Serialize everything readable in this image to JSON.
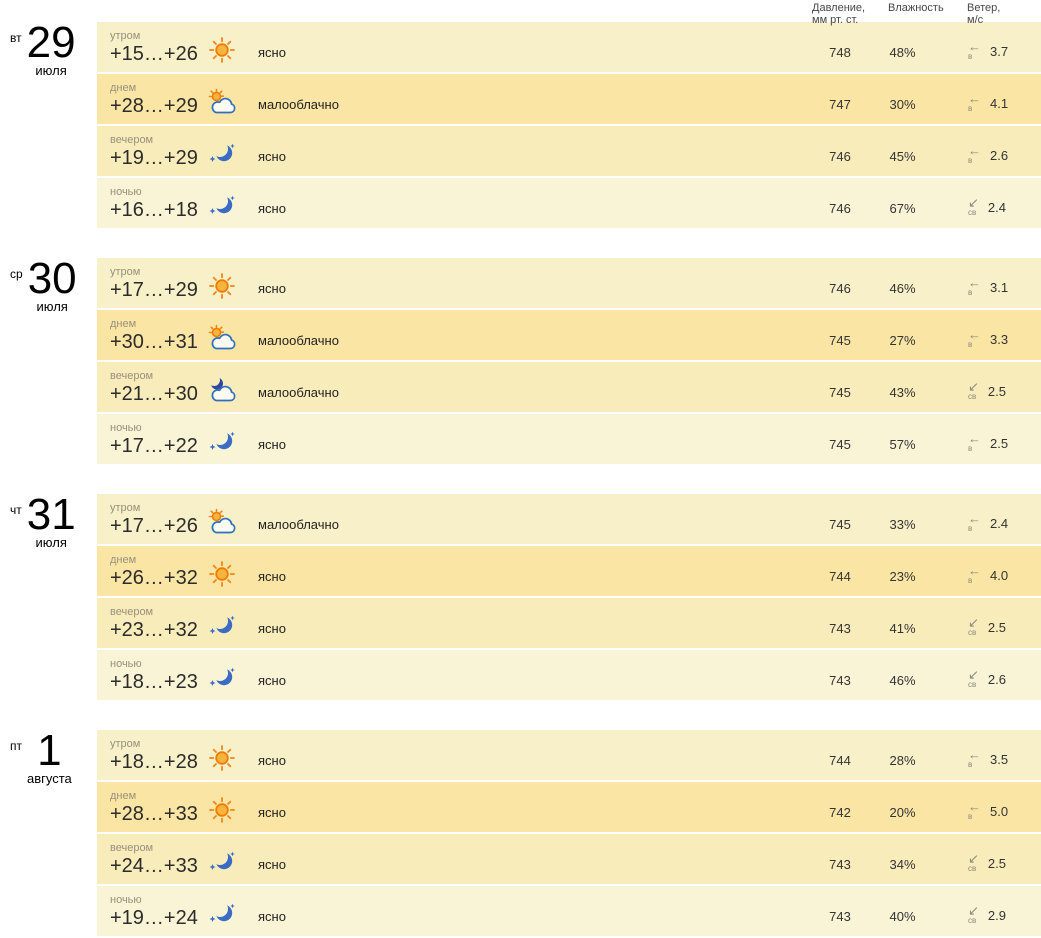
{
  "columns": {
    "pressure_label": "Давление,\nмм рт. ст.",
    "humidity_label": "Влажность",
    "wind_label": "Ветер,\nм/с"
  },
  "colors": {
    "row_morning": "#f7f0c8",
    "row_day": "#fbe5a4",
    "row_evening": "#f9ecbb",
    "row_night": "#f9f4d6",
    "sun_orange": "#f08518",
    "cloud_blue": "#2e6fbf",
    "moon_blue": "#3a6cc4",
    "dark_moon_blue": "#2b4a9e",
    "muted_text": "#97917d"
  },
  "days": [
    {
      "dow": "вт",
      "date": "29",
      "month": "июля",
      "rows": [
        {
          "part": "утром",
          "temp": "+15…+26",
          "icon": "sun",
          "condition": "ясно",
          "pressure": "748",
          "humidity": "48%",
          "wind_arrow": "←",
          "wind_dir": "в",
          "wind_speed": "3.7"
        },
        {
          "part": "днем",
          "temp": "+28…+29",
          "icon": "sun-cloud",
          "condition": "малооблачно",
          "pressure": "747",
          "humidity": "30%",
          "wind_arrow": "←",
          "wind_dir": "в",
          "wind_speed": "4.1"
        },
        {
          "part": "вечером",
          "temp": "+19…+29",
          "icon": "moon",
          "condition": "ясно",
          "pressure": "746",
          "humidity": "45%",
          "wind_arrow": "←",
          "wind_dir": "в",
          "wind_speed": "2.6"
        },
        {
          "part": "ночью",
          "temp": "+16…+18",
          "icon": "moon",
          "condition": "ясно",
          "pressure": "746",
          "humidity": "67%",
          "wind_arrow": "↙",
          "wind_dir": "св",
          "wind_speed": "2.4"
        }
      ]
    },
    {
      "dow": "ср",
      "date": "30",
      "month": "июля",
      "rows": [
        {
          "part": "утром",
          "temp": "+17…+29",
          "icon": "sun",
          "condition": "ясно",
          "pressure": "746",
          "humidity": "46%",
          "wind_arrow": "←",
          "wind_dir": "в",
          "wind_speed": "3.1"
        },
        {
          "part": "днем",
          "temp": "+30…+31",
          "icon": "sun-cloud",
          "condition": "малооблачно",
          "pressure": "745",
          "humidity": "27%",
          "wind_arrow": "←",
          "wind_dir": "в",
          "wind_speed": "3.3"
        },
        {
          "part": "вечером",
          "temp": "+21…+30",
          "icon": "moon-cloud",
          "condition": "малооблачно",
          "pressure": "745",
          "humidity": "43%",
          "wind_arrow": "↙",
          "wind_dir": "св",
          "wind_speed": "2.5"
        },
        {
          "part": "ночью",
          "temp": "+17…+22",
          "icon": "moon",
          "condition": "ясно",
          "pressure": "745",
          "humidity": "57%",
          "wind_arrow": "←",
          "wind_dir": "в",
          "wind_speed": "2.5"
        }
      ]
    },
    {
      "dow": "чт",
      "date": "31",
      "month": "июля",
      "rows": [
        {
          "part": "утром",
          "temp": "+17…+26",
          "icon": "sun-cloud",
          "condition": "малооблачно",
          "pressure": "745",
          "humidity": "33%",
          "wind_arrow": "←",
          "wind_dir": "в",
          "wind_speed": "2.4"
        },
        {
          "part": "днем",
          "temp": "+26…+32",
          "icon": "sun",
          "condition": "ясно",
          "pressure": "744",
          "humidity": "23%",
          "wind_arrow": "←",
          "wind_dir": "в",
          "wind_speed": "4.0"
        },
        {
          "part": "вечером",
          "temp": "+23…+32",
          "icon": "moon",
          "condition": "ясно",
          "pressure": "743",
          "humidity": "41%",
          "wind_arrow": "↙",
          "wind_dir": "св",
          "wind_speed": "2.5"
        },
        {
          "part": "ночью",
          "temp": "+18…+23",
          "icon": "moon",
          "condition": "ясно",
          "pressure": "743",
          "humidity": "46%",
          "wind_arrow": "↙",
          "wind_dir": "св",
          "wind_speed": "2.6"
        }
      ]
    },
    {
      "dow": "пт",
      "date": "1",
      "month": "августа",
      "rows": [
        {
          "part": "утром",
          "temp": "+18…+28",
          "icon": "sun",
          "condition": "ясно",
          "pressure": "744",
          "humidity": "28%",
          "wind_arrow": "←",
          "wind_dir": "в",
          "wind_speed": "3.5"
        },
        {
          "part": "днем",
          "temp": "+28…+33",
          "icon": "sun",
          "condition": "ясно",
          "pressure": "742",
          "humidity": "20%",
          "wind_arrow": "←",
          "wind_dir": "в",
          "wind_speed": "5.0"
        },
        {
          "part": "вечером",
          "temp": "+24…+33",
          "icon": "moon",
          "condition": "ясно",
          "pressure": "743",
          "humidity": "34%",
          "wind_arrow": "↙",
          "wind_dir": "св",
          "wind_speed": "2.5"
        },
        {
          "part": "ночью",
          "temp": "+19…+24",
          "icon": "moon",
          "condition": "ясно",
          "pressure": "743",
          "humidity": "40%",
          "wind_arrow": "↙",
          "wind_dir": "св",
          "wind_speed": "2.9"
        }
      ]
    }
  ]
}
